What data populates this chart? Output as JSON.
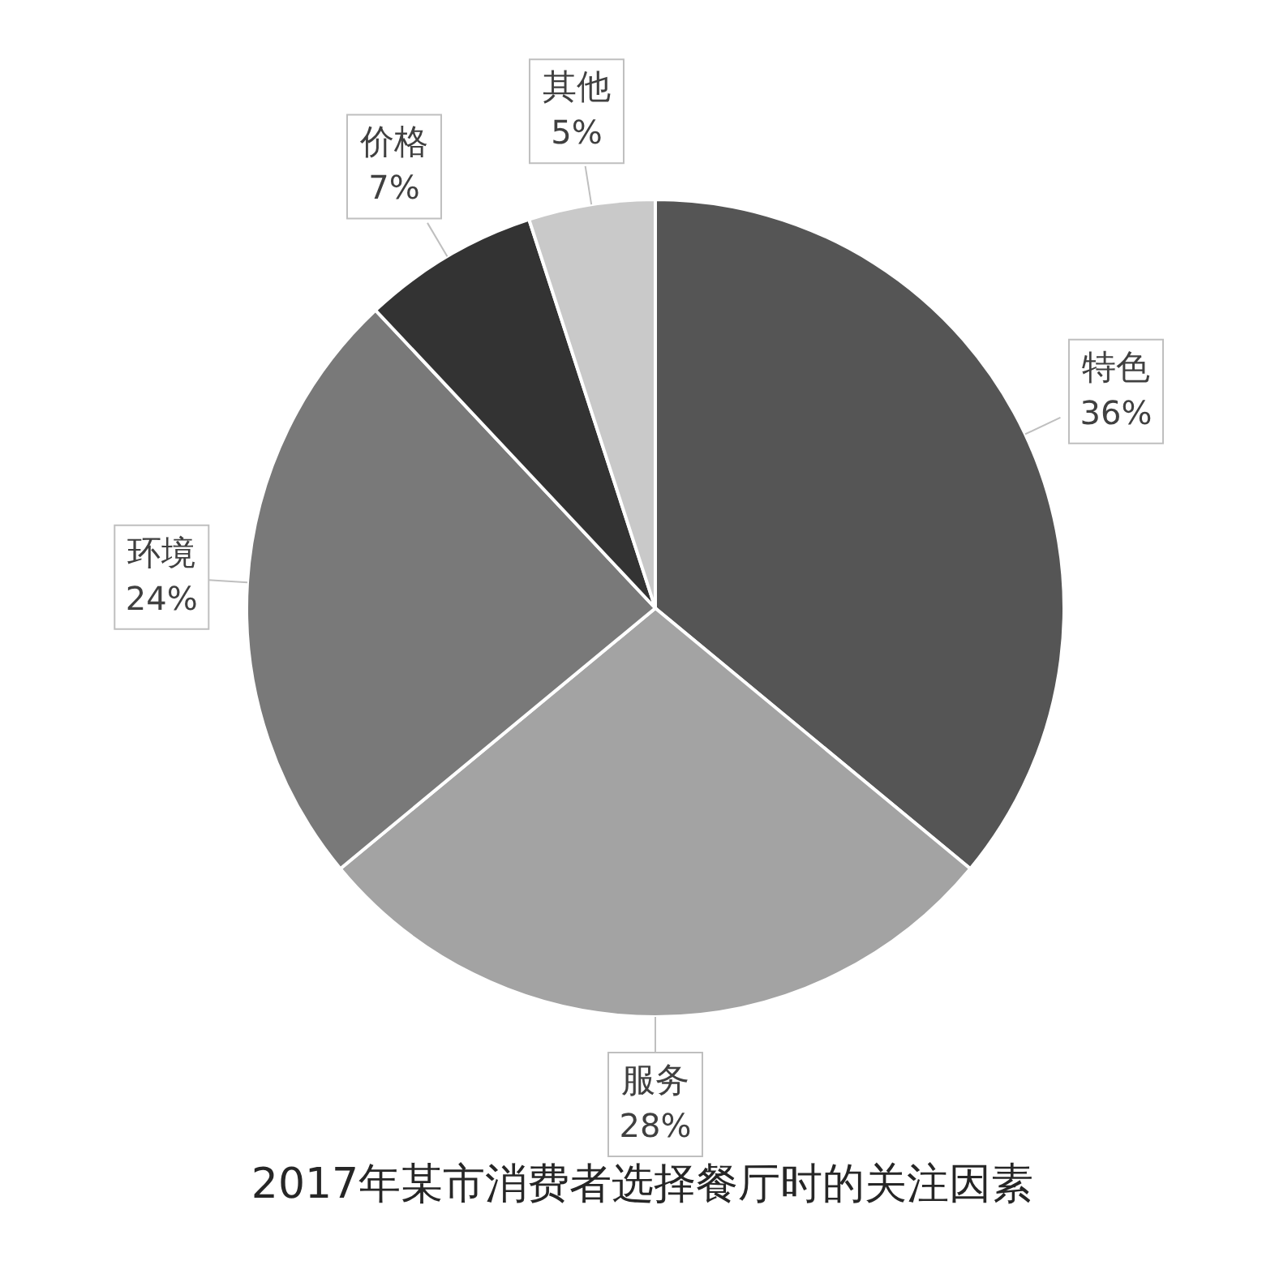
{
  "chart_data": {
    "type": "pie",
    "title": "2017年某市消费者选择餐厅时的关注因素",
    "categories": [
      "特色",
      "服务",
      "环境",
      "价格",
      "其他"
    ],
    "values": [
      36,
      28,
      24,
      7,
      5
    ],
    "value_labels": [
      "36%",
      "28%",
      "24%",
      "7%",
      "5%"
    ],
    "colors": [
      "#555555",
      "#a3a3a3",
      "#797979",
      "#333333",
      "#c9c9c9"
    ],
    "legend": false
  }
}
